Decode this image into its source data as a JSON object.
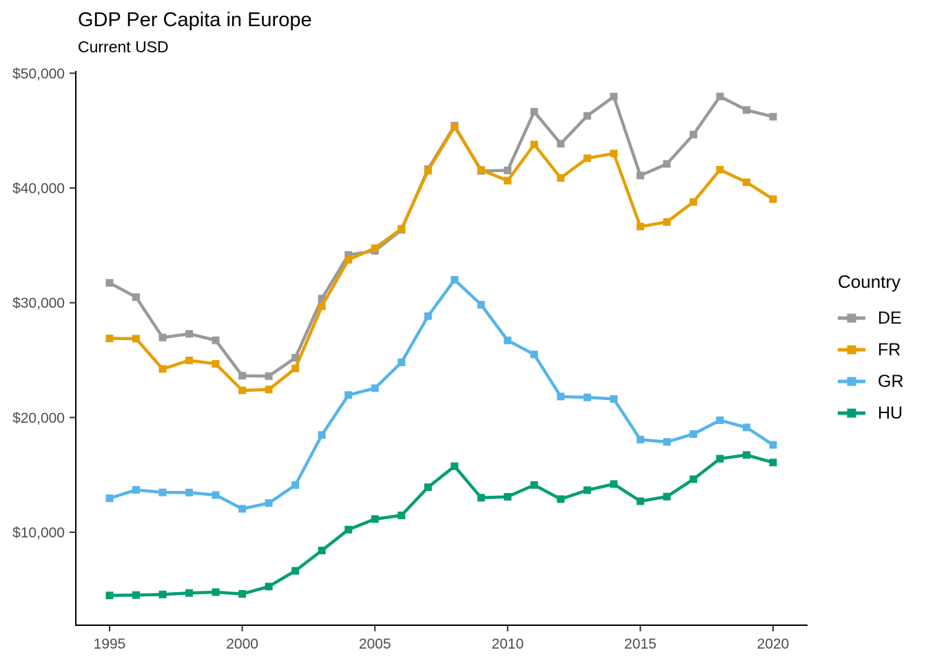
{
  "chart_data": {
    "type": "line",
    "title": "GDP Per Capita in Europe",
    "subtitle": "Current USD",
    "legend_title": "Country",
    "legend_position": "right",
    "grid": false,
    "x_label": "",
    "y_label": "",
    "x": [
      1995,
      1996,
      1997,
      1998,
      1999,
      2000,
      2001,
      2002,
      2003,
      2004,
      2005,
      2006,
      2007,
      2008,
      2009,
      2010,
      2011,
      2012,
      2013,
      2014,
      2015,
      2016,
      2017,
      2018,
      2019,
      2020
    ],
    "series": [
      {
        "name": "DE",
        "color": "#999999",
        "values": [
          31730,
          30486,
          26970,
          27289,
          26726,
          23636,
          23607,
          25205,
          30360,
          34166,
          34520,
          36354,
          41640,
          45427,
          41486,
          41532,
          46645,
          43856,
          46285,
          47960,
          41086,
          42099,
          44653,
          47973,
          46794,
          46208
        ]
      },
      {
        "name": "FR",
        "color": "#E69F00",
        "values": [
          26890,
          26870,
          24229,
          24974,
          24673,
          22364,
          22434,
          24276,
          29691,
          33741,
          34760,
          36444,
          41508,
          45334,
          41575,
          40638,
          43790,
          40875,
          42592,
          43011,
          36638,
          37037,
          38781,
          41593,
          40494,
          39030
        ]
      },
      {
        "name": "GR",
        "color": "#56B4E9",
        "values": [
          12960,
          13690,
          13470,
          13460,
          13245,
          12043,
          12538,
          14110,
          18477,
          21955,
          22552,
          24801,
          28827,
          31997,
          29829,
          26717,
          25494,
          21827,
          21750,
          21615,
          18072,
          17870,
          18558,
          19757,
          19133,
          17617
        ]
      },
      {
        "name": "HU",
        "color": "#009E73",
        "values": [
          4494,
          4528,
          4580,
          4708,
          4779,
          4625,
          5270,
          6640,
          8410,
          10230,
          11150,
          11470,
          13920,
          15753,
          13009,
          13092,
          14118,
          12888,
          13668,
          14201,
          12706,
          13104,
          14621,
          16411,
          16733,
          16076
        ]
      }
    ],
    "x_ticks": {
      "values": [
        1995,
        2000,
        2005,
        2010,
        2015,
        2020
      ],
      "labels": [
        "1995",
        "2000",
        "2005",
        "2010",
        "2015",
        "2020"
      ]
    },
    "y_ticks": {
      "values": [
        10000,
        20000,
        30000,
        40000,
        50000
      ],
      "labels": [
        "$10,000",
        "$20,000",
        "$30,000",
        "$40,000",
        "$50,000"
      ]
    },
    "x_range": [
      1993.7,
      2021.4
    ],
    "y_range": [
      1900,
      50200
    ],
    "axis_text_color": "#4D4D4D",
    "axis_line_color": "#000000"
  }
}
